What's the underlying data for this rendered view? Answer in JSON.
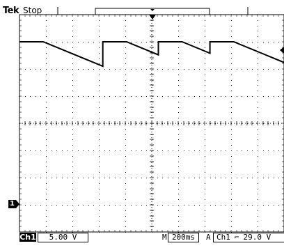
{
  "header": {
    "brand": "Tek",
    "run_state": "Stop"
  },
  "channel_marker": {
    "label": "1"
  },
  "footer": {
    "channel": "Ch1",
    "volts_per_div": "5.00 V",
    "timebase_prefix": "M",
    "time_per_div": "200ms",
    "trigger_prefix": "A",
    "trigger_source": "Ch1",
    "trigger_slope_icon": "falling-edge-icon",
    "trigger_slope_glyph": "⌐",
    "trigger_level": "29.0 V"
  },
  "waveform": {
    "type": "sawtooth",
    "description_values": {
      "high_level_div": 3.0,
      "low_level_div": 2.1,
      "cycle_start_div": [
        0,
        3.15,
        5.25,
        7.2
      ],
      "flat_top_len_div": 0.9
    }
  },
  "colors": {
    "trace": "#000000",
    "grid": "#000000",
    "background": "#ffffff"
  }
}
